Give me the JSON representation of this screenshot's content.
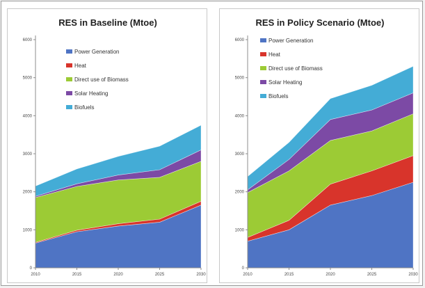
{
  "colors": {
    "power_generation": "#4f74c4",
    "heat": "#d8342b",
    "direct_biomass": "#9ccb35",
    "solar_heating": "#7c4aa5",
    "biofuels": "#44acd6"
  },
  "chart_data": [
    {
      "type": "area",
      "stacked": true,
      "title": "RES in Baseline (Mtoe)",
      "x": [
        "2010",
        "2015",
        "2020",
        "2025",
        "2030"
      ],
      "ylim": [
        0,
        6000
      ],
      "yticks": [
        "0",
        "1000",
        "2000",
        "3000",
        "4000",
        "5000",
        "6000"
      ],
      "grid": false,
      "legend_position": "top-left",
      "series": [
        {
          "name": "Power Generation",
          "values": [
            650,
            950,
            1100,
            1200,
            1650
          ]
        },
        {
          "name": "Heat",
          "values": [
            20,
            40,
            60,
            80,
            100
          ]
        },
        {
          "name": "Direct use of Biomass",
          "values": [
            1180,
            1150,
            1150,
            1100,
            1050
          ]
        },
        {
          "name": "Solar Heating",
          "values": [
            30,
            70,
            130,
            200,
            300
          ]
        },
        {
          "name": "Biofuels",
          "values": [
            270,
            390,
            490,
            620,
            650
          ]
        }
      ]
    },
    {
      "type": "area",
      "stacked": true,
      "title": "RES in Policy Scenario (Mtoe)",
      "x": [
        "2010",
        "2015",
        "2020",
        "2025",
        "2030"
      ],
      "ylim": [
        0,
        6000
      ],
      "yticks": [
        "0",
        "1000",
        "2000",
        "3000",
        "4000",
        "5000",
        "6000"
      ],
      "grid": false,
      "legend_position": "top-left",
      "series": [
        {
          "name": "Power Generation",
          "values": [
            700,
            1000,
            1650,
            1900,
            2250
          ]
        },
        {
          "name": "Heat",
          "values": [
            100,
            250,
            550,
            650,
            700
          ]
        },
        {
          "name": "Direct use of Biomass",
          "values": [
            1180,
            1300,
            1150,
            1050,
            1100
          ]
        },
        {
          "name": "Solar Heating",
          "values": [
            70,
            300,
            550,
            550,
            550
          ]
        },
        {
          "name": "Biofuels",
          "values": [
            350,
            450,
            550,
            650,
            700
          ]
        }
      ]
    }
  ]
}
